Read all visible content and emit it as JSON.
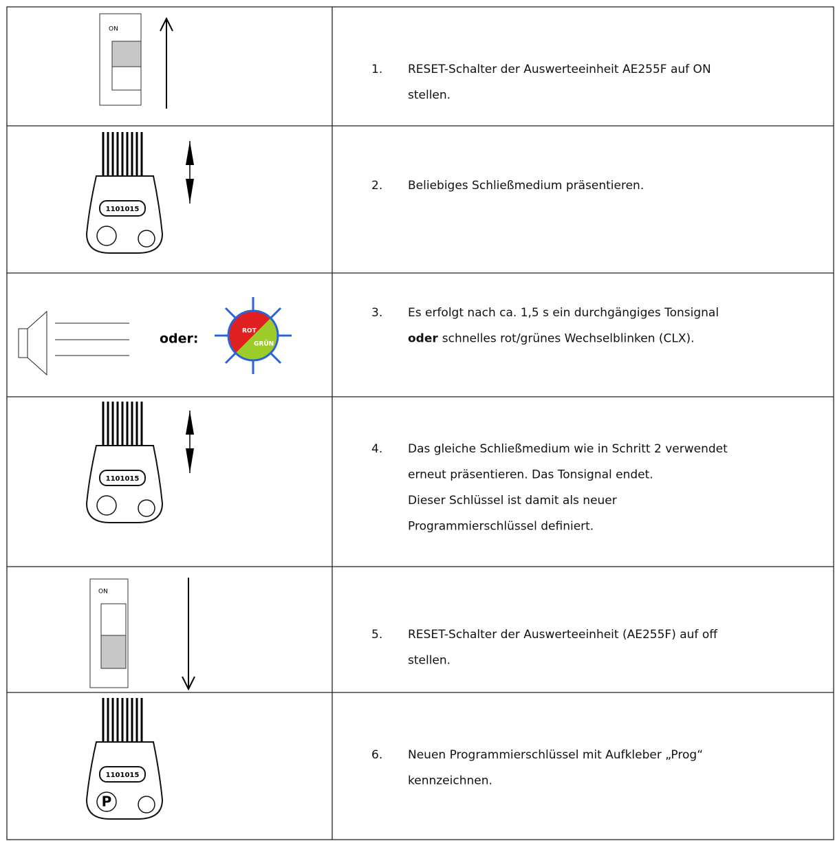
{
  "rows": [
    {
      "illustration": {
        "label": "ON"
      },
      "number": "1.",
      "lines": [
        "RESET-Schalter der Auswerteeinheit AE255F auf ON",
        "stellen."
      ]
    },
    {
      "illustration": {
        "label": "1101015"
      },
      "number": "2.",
      "lines": [
        "Beliebiges Schließmedium präsentieren."
      ]
    },
    {
      "illustration": {
        "connector": "oder:",
        "red": "ROT",
        "green": "GRÜN"
      },
      "number": "3.",
      "lines": [
        "Es erfolgt nach ca. 1,5 s ein durchgängiges Tonsignal",
        {
          "bold": "oder",
          "text": "schnelles rot/grünes Wechselblinken (CLX)."
        }
      ]
    },
    {
      "illustration": {
        "label": "1101015"
      },
      "number": "4.",
      "lines": [
        "Das gleiche Schließmedium wie in Schritt 2 verwendet",
        "erneut präsentieren. Das Tonsignal endet.",
        "Dieser Schlüssel ist damit als neuer",
        "Programmierschlüssel definiert."
      ]
    },
    {
      "illustration": {
        "label": "ON"
      },
      "number": "5.",
      "lines": [
        "RESET-Schalter der Auswerteeinheit (AE255F) auf off",
        "stellen."
      ]
    },
    {
      "illustration": {
        "label": "1101015",
        "mark": "P"
      },
      "number": "6.",
      "lines": [
        "Neuen Programmierschlüssel mit Aufkleber „Prog“",
        "kennzeichnen."
      ]
    }
  ]
}
